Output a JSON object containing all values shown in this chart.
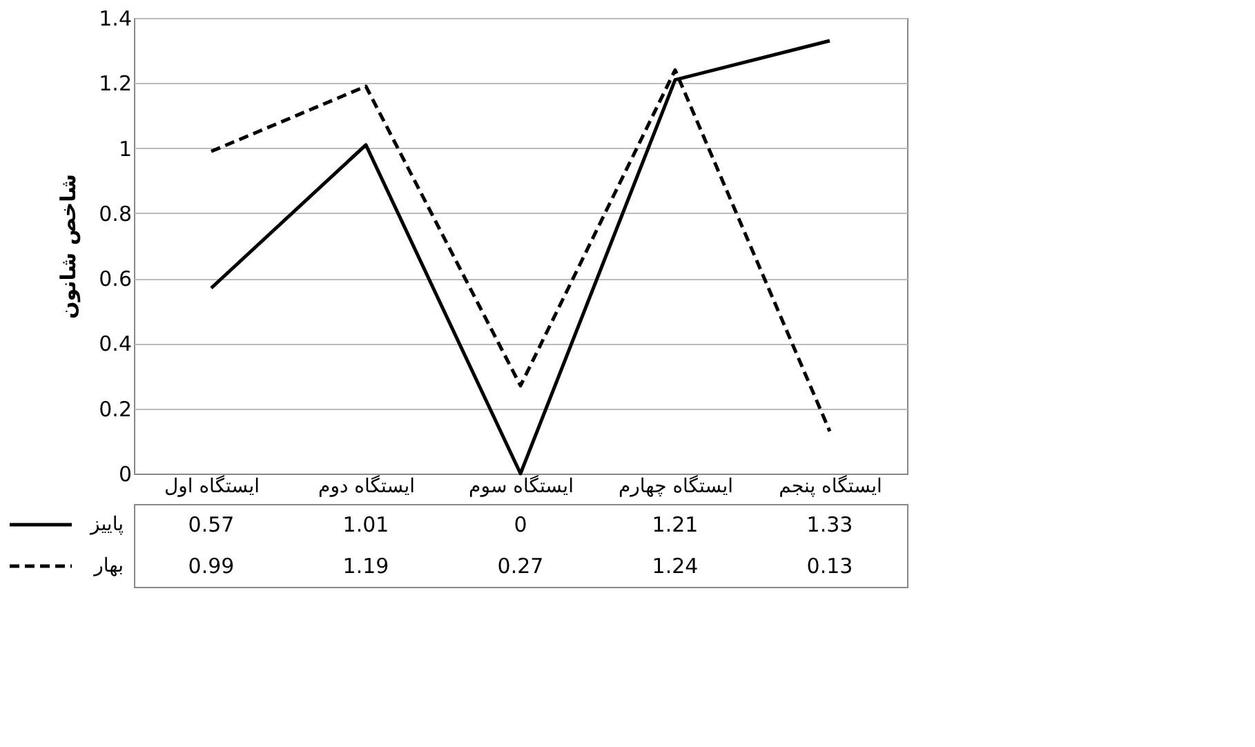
{
  "chart_data": {
    "type": "line",
    "ylabel": "شاخص شانون",
    "categories": [
      "ایستگاه اول",
      "ایستگاه دوم",
      "ایستگاه سوم",
      "ایستگاه چهارم",
      "ایستگاه پنجم"
    ],
    "series": [
      {
        "name": "پاییز",
        "color": "#000000",
        "line_style": "solid",
        "values": [
          0.57,
          1.01,
          0,
          1.21,
          1.33
        ]
      },
      {
        "name": "بهار",
        "color": "#000000",
        "line_style": "dashed",
        "values": [
          0.99,
          1.19,
          0.27,
          1.24,
          0.13
        ]
      }
    ],
    "ylim": [
      0,
      1.4
    ],
    "yticks": [
      0,
      0.2,
      0.4,
      0.6,
      0.8,
      1,
      1.2,
      1.4
    ],
    "grid": "y",
    "legend": "bottom left",
    "data_labels": true
  }
}
